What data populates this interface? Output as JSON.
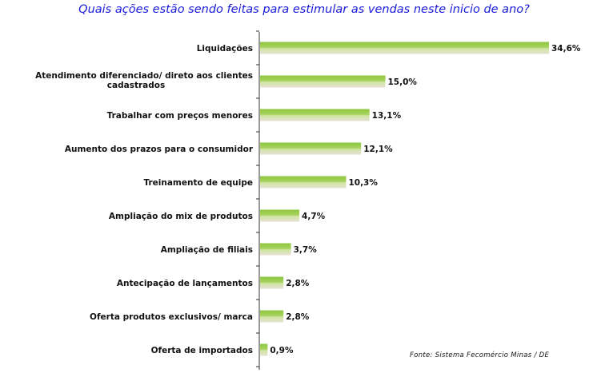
{
  "chart_data": {
    "type": "bar",
    "orientation": "horizontal",
    "title": "Quais ações estão sendo feitas para estimular as vendas neste inicio de ano?",
    "categories": [
      [
        "Liquidações"
      ],
      [
        "Atendimento diferenciado/ direto aos clientes",
        "cadastrados"
      ],
      [
        "Trabalhar com preços menores"
      ],
      [
        "Aumento dos prazos para o consumidor"
      ],
      [
        "Treinamento de equipe"
      ],
      [
        "Ampliação do mix de produtos"
      ],
      [
        "Ampliação de filiais"
      ],
      [
        "Antecipação de lançamentos"
      ],
      [
        "Oferta produtos exclusivos/ marca"
      ],
      [
        "Oferta de importados"
      ]
    ],
    "values": [
      34.6,
      15.0,
      13.1,
      12.1,
      10.3,
      4.7,
      3.7,
      2.8,
      2.8,
      0.9
    ],
    "value_labels": [
      "34,6%",
      "15,0%",
      "13,1%",
      "12,1%",
      "10,3%",
      "4,7%",
      "3,7%",
      "2,8%",
      "2,8%",
      "0,9%"
    ],
    "xlim": [
      0,
      34.6
    ],
    "grid": false,
    "colors": {
      "bar_top": "#8dc63f",
      "bar_mid": "#c9e39a",
      "bar_bottom": "#e3e0d2",
      "axis": "#333333",
      "title": "#1a1adb"
    }
  },
  "source_note": "Fonte: Sistema Fecomércio Minas / DE"
}
